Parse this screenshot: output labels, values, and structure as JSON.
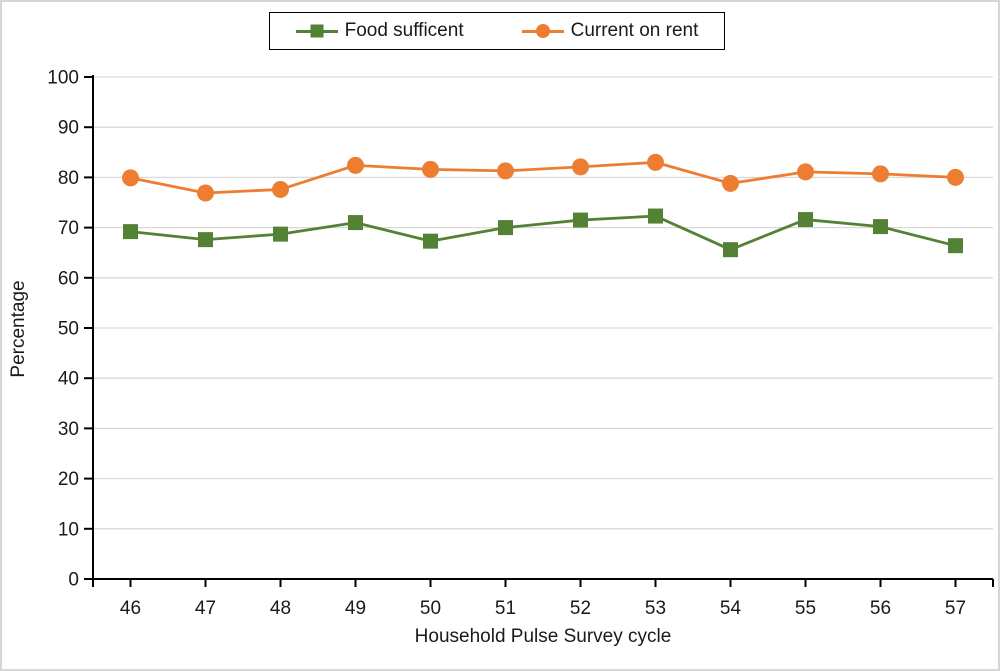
{
  "legend": {
    "items": [
      {
        "label": "Food sufficent",
        "marker": "square",
        "color": "#548235"
      },
      {
        "label": "Current on rent",
        "marker": "circle",
        "color": "#ED7D31"
      }
    ]
  },
  "axes": {
    "ylabel": "Percentage",
    "xlabel": "Household Pulse Survey cycle"
  },
  "chart_data": {
    "type": "line",
    "title": "",
    "xlabel": "Household Pulse Survey cycle",
    "ylabel": "Percentage",
    "categories": [
      46,
      47,
      48,
      49,
      50,
      51,
      52,
      53,
      54,
      55,
      56,
      57
    ],
    "series": [
      {
        "name": "Food sufficent",
        "marker": "square",
        "color": "#548235",
        "values": [
          69.2,
          67.6,
          68.7,
          71.0,
          67.3,
          70.0,
          71.5,
          72.3,
          65.6,
          71.6,
          70.2,
          66.4
        ]
      },
      {
        "name": "Current on rent",
        "marker": "circle",
        "color": "#ED7D31",
        "values": [
          79.9,
          76.9,
          77.6,
          82.4,
          81.6,
          81.3,
          82.1,
          83.0,
          78.8,
          81.1,
          80.7,
          80.0
        ]
      }
    ],
    "ylim": [
      0,
      100
    ],
    "ytick_step": 10,
    "grid": true,
    "legend_position": "top",
    "colors": {
      "gridline": "#d9d9d9",
      "axis": "#000000",
      "text": "#1a1a1a",
      "background": "#ffffff",
      "frame_border": "#d6d6d6"
    }
  }
}
